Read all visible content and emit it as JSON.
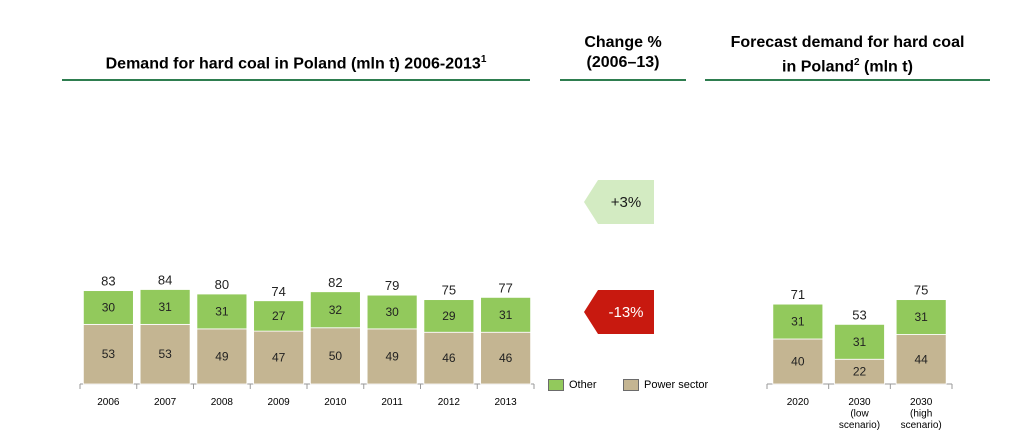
{
  "colors": {
    "other": "#92c95c",
    "power": "#c4b592",
    "rule": "#2e7d4f",
    "up": "#d3ebc2",
    "down": "#c8190f"
  },
  "headers": {
    "left": "Demand for hard coal in Poland (mln t) 2006-2013",
    "left_sup": "1",
    "middle_line1": "Change %",
    "middle_line2": "(2006–13)",
    "right_line1": "Forecast demand for hard coal",
    "right_line2a": "in Poland",
    "right_sup": "2",
    "right_line2b": " (mln t)"
  },
  "change": {
    "other": "+3%",
    "power": "-13%"
  },
  "legend": {
    "other": "Other",
    "power": "Power sector"
  },
  "chart_data": [
    {
      "type": "bar",
      "stacked": true,
      "title": "Demand for hard coal in Poland (mln t) 2006-2013",
      "categories": [
        "2006",
        "2007",
        "2008",
        "2009",
        "2010",
        "2011",
        "2012",
        "2013"
      ],
      "series": [
        {
          "name": "Power sector",
          "values": [
            53,
            53,
            49,
            47,
            50,
            49,
            46,
            46
          ]
        },
        {
          "name": "Other",
          "values": [
            30,
            31,
            31,
            27,
            32,
            30,
            29,
            31
          ]
        }
      ],
      "totals": [
        83,
        84,
        80,
        74,
        82,
        79,
        75,
        77
      ]
    },
    {
      "type": "bar",
      "stacked": true,
      "title": "Forecast demand for hard coal in Poland (mln t)",
      "categories": [
        [
          "2020"
        ],
        [
          "2030",
          "(low",
          "scenario)"
        ],
        [
          "2030",
          "(high",
          "scenario)"
        ]
      ],
      "series": [
        {
          "name": "Power sector",
          "values": [
            40,
            22,
            44
          ]
        },
        {
          "name": "Other",
          "values": [
            31,
            31,
            31
          ]
        }
      ],
      "totals": [
        71,
        53,
        75
      ]
    }
  ]
}
